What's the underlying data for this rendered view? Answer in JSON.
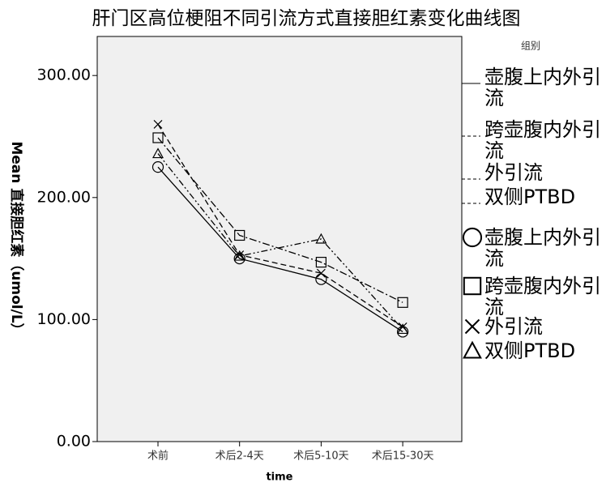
{
  "chart_data": {
    "type": "line",
    "title": "肝门区高位梗阻不同引流方式直接胆红素变化曲线图",
    "x_label": "time",
    "y_label": "Mean 直接胆红素（umol/L）",
    "legend_title": "组别",
    "categories": [
      "术前",
      "术后2-4天",
      "术后5-10天",
      "术后15-30天"
    ],
    "series": [
      {
        "name": "壶腹上内外引流",
        "color": "#000000",
        "dash": "none",
        "marker": "circle",
        "values": [
          225,
          150,
          133,
          90
        ]
      },
      {
        "name": "跨壶腹内外引流",
        "color": "#000000",
        "dash": "9 3 2 3",
        "marker": "square",
        "values": [
          249,
          169,
          147,
          114
        ]
      },
      {
        "name": "外引流",
        "color": "#000000",
        "dash": "7 4",
        "marker": "cross",
        "values": [
          260,
          153,
          138,
          94
        ]
      },
      {
        "name": "双侧PTBD",
        "color": "#000000",
        "dash": "8 3 2 3 2 3",
        "marker": "triangle",
        "values": [
          236,
          152,
          166,
          92
        ]
      }
    ],
    "ylim": [
      0,
      332
    ],
    "yticks": [
      {
        "value": 0,
        "label": "0.00"
      },
      {
        "value": 100,
        "label": "100.00"
      },
      {
        "value": 200,
        "label": "200.00"
      },
      {
        "value": 300,
        "label": "300.00"
      }
    ]
  }
}
